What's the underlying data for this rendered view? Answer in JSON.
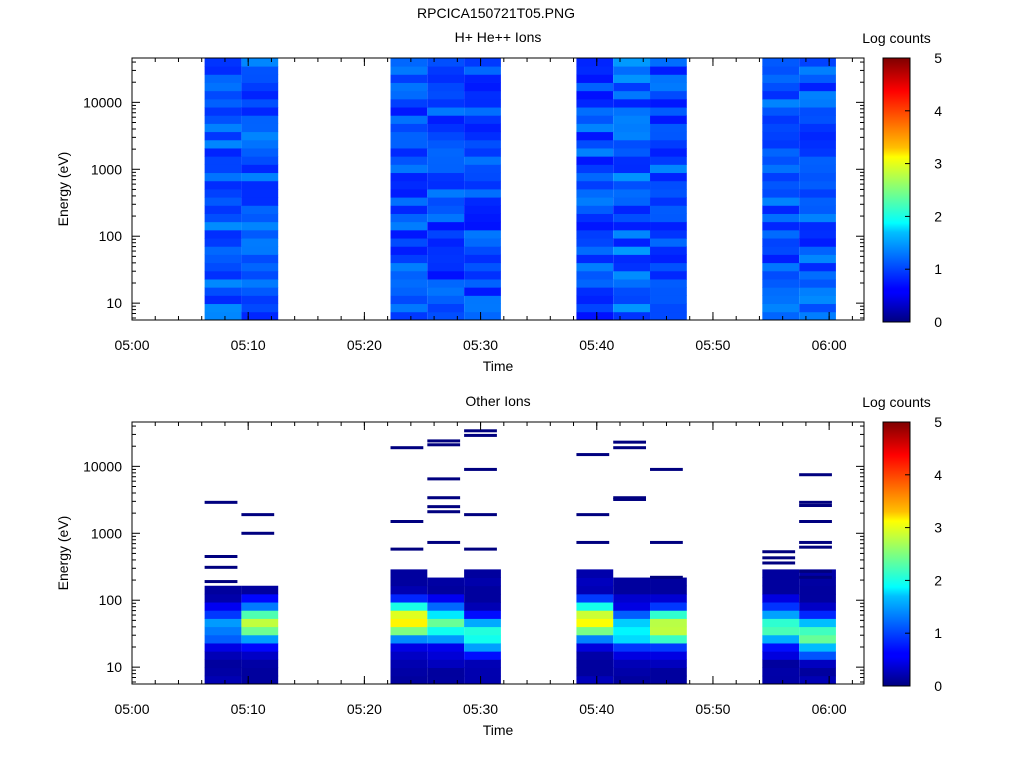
{
  "figure_title": "RPCICA150721T05.PNG",
  "chart_data": [
    {
      "type": "heatmap",
      "title": "H+ He++ Ions",
      "xlabel": "Time",
      "ylabel": "Energy (eV)",
      "colorbar_label": "Log counts",
      "x_range": [
        "05:00",
        "06:03"
      ],
      "y_range": [
        5.6,
        46000
      ],
      "y_scale": "log",
      "x_ticks": [
        "05:00",
        "05:10",
        "05:20",
        "05:30",
        "05:40",
        "05:50",
        "06:00"
      ],
      "y_ticks": [
        "10",
        "100",
        "1000",
        "10000"
      ],
      "colorbar_range": [
        0,
        5
      ],
      "colorbar_ticks": [
        "0",
        "1",
        "2",
        "3",
        "4",
        "5"
      ],
      "columns": [
        {
          "start": "05:06:15",
          "end": "05:09:25",
          "lo": 0.78,
          "hi": 1.35
        },
        {
          "start": "05:09:25",
          "end": "05:12:35",
          "lo": 0.75,
          "hi": 1.3
        },
        {
          "start": "05:22:15",
          "end": "05:25:25",
          "lo": 0.72,
          "hi": 1.25
        },
        {
          "start": "05:25:25",
          "end": "05:28:35",
          "lo": 0.7,
          "hi": 1.25
        },
        {
          "start": "05:28:35",
          "end": "05:31:45",
          "lo": 0.7,
          "hi": 1.25
        },
        {
          "start": "05:38:15",
          "end": "05:41:25",
          "lo": 0.7,
          "hi": 1.3
        },
        {
          "start": "05:41:25",
          "end": "05:44:35",
          "lo": 0.72,
          "hi": 1.4
        },
        {
          "start": "05:44:35",
          "end": "05:47:45",
          "lo": 0.72,
          "hi": 1.3
        },
        {
          "start": "05:54:15",
          "end": "05:57:25",
          "lo": 0.75,
          "hi": 1.3
        },
        {
          "start": "05:57:25",
          "end": "06:00:35",
          "lo": 0.75,
          "hi": 1.3
        }
      ]
    },
    {
      "type": "heatmap",
      "title": "Other Ions",
      "xlabel": "Time",
      "ylabel": "Energy (eV)",
      "colorbar_label": "Log counts",
      "x_range": [
        "05:00",
        "06:03"
      ],
      "y_range": [
        5.6,
        46000
      ],
      "y_scale": "log",
      "x_ticks": [
        "05:00",
        "05:10",
        "05:20",
        "05:30",
        "05:40",
        "05:50",
        "06:00"
      ],
      "y_ticks": [
        "10",
        "100",
        "1000",
        "10000"
      ],
      "colorbar_range": [
        0,
        5
      ],
      "colorbar_ticks": [
        "0",
        "1",
        "2",
        "3",
        "4",
        "5"
      ],
      "columns": [
        {
          "start": "05:06:15",
          "end": "05:09:25",
          "block_top": 150,
          "peak_e": 40,
          "peak": 1.2,
          "lines": [
            2900,
            450,
            310,
            190
          ]
        },
        {
          "start": "05:09:25",
          "end": "05:12:35",
          "block_top": 170,
          "peak_e": 45,
          "peak": 2.6,
          "lines": [
            1900,
            1000
          ]
        },
        {
          "start": "05:22:15",
          "end": "05:25:25",
          "block_top": 260,
          "peak_e": 50,
          "peak": 3.0,
          "lines": [
            19000,
            1500,
            580
          ]
        },
        {
          "start": "05:25:25",
          "end": "05:28:35",
          "block_top": 190,
          "peak_e": 45,
          "peak": 2.2,
          "lines": [
            24000,
            21000,
            6500,
            3400,
            2500,
            2100,
            730
          ]
        },
        {
          "start": "05:28:35",
          "end": "05:31:45",
          "block_top": 260,
          "peak_e": 30,
          "peak": 2.0,
          "lines": [
            34000,
            29000,
            9000,
            1900,
            580
          ]
        },
        {
          "start": "05:38:15",
          "end": "05:41:25",
          "block_top": 260,
          "peak_e": 50,
          "peak": 3.0,
          "lines": [
            15000,
            1900,
            730
          ]
        },
        {
          "start": "05:41:25",
          "end": "05:44:35",
          "block_top": 200,
          "peak_e": 35,
          "peak": 1.8,
          "lines": [
            23000,
            19000,
            3400,
            3200
          ]
        },
        {
          "start": "05:44:35",
          "end": "05:47:45",
          "block_top": 220,
          "peak_e": 40,
          "peak": 2.8,
          "lines": [
            9000,
            730,
            220
          ]
        },
        {
          "start": "05:54:15",
          "end": "05:57:25",
          "block_top": 290,
          "peak_e": 40,
          "peak": 2.1,
          "lines": [
            530,
            430,
            360
          ]
        },
        {
          "start": "05:57:25",
          "end": "06:00:35",
          "block_top": 260,
          "peak_e": 30,
          "peak": 2.3,
          "lines": [
            7500,
            2900,
            2600,
            1500,
            730,
            620,
            270,
            220
          ]
        }
      ]
    }
  ]
}
